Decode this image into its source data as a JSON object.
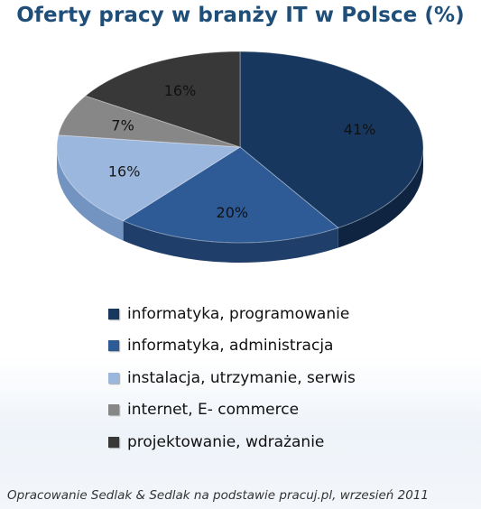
{
  "chart_data": {
    "type": "pie",
    "title": "Oferty pracy w branży IT w Polsce (%)",
    "categories": [
      "informatyka, programowanie",
      "informatyka, administracja",
      "instalacja, utrzymanie, serwis",
      "internet, E- commerce",
      "projektowanie, wdrażanie"
    ],
    "values": [
      41,
      20,
      16,
      7,
      16
    ],
    "labels": [
      "41%",
      "20%",
      "16%",
      "7%",
      "16%"
    ],
    "colors": [
      "#17375e",
      "#2e5a95",
      "#9bb7dd",
      "#878787",
      "#383838"
    ],
    "side_colors": [
      "#0e2440",
      "#1f3e69",
      "#7394c0",
      "#5f5f5f",
      "#232323"
    ],
    "legend_position": "bottom"
  },
  "footer": {
    "source": "Opracowanie Sedlak & Sedlak na podstawie pracuj.pl, wrzesień 2011"
  }
}
